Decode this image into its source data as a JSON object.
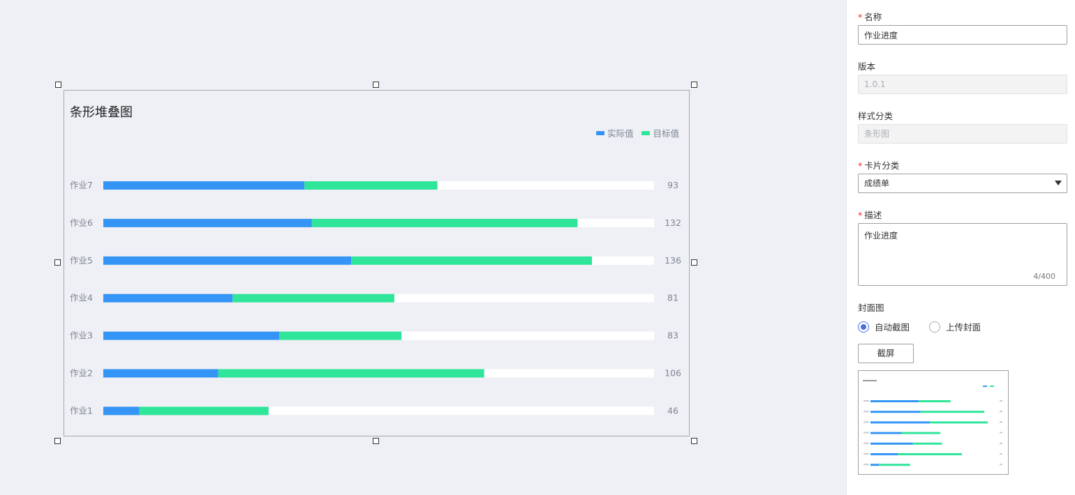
{
  "chart_data": {
    "type": "bar",
    "orientation": "horizontal",
    "stacked": true,
    "title": "条形堆叠图",
    "categories": [
      "作业7",
      "作业6",
      "作业5",
      "作业4",
      "作业3",
      "作业2",
      "作业1"
    ],
    "series": [
      {
        "name": "实际值",
        "color": "#3595f6",
        "values": [
          56,
          58,
          69,
          36,
          49,
          32,
          10
        ]
      },
      {
        "name": "目标值",
        "color": "#2fe59a",
        "values": [
          37,
          74,
          67,
          45,
          34,
          74,
          36
        ]
      }
    ],
    "totals": [
      93,
      132,
      136,
      81,
      83,
      106,
      46
    ],
    "xlim": [
      0,
      150
    ],
    "legend_position": "top-right",
    "grid": false
  },
  "panel": {
    "name": {
      "label": "名称",
      "required": true,
      "value": "作业进度"
    },
    "version": {
      "label": "版本",
      "value": "1.0.1"
    },
    "style_category": {
      "label": "样式分类",
      "value": "条形图"
    },
    "card_category": {
      "label": "卡片分类",
      "required": true,
      "value": "成绩单"
    },
    "description": {
      "label": "描述",
      "required": true,
      "value": "作业进度",
      "counter": "4/400"
    },
    "cover": {
      "label": "封面图",
      "options": [
        {
          "label": "自动截图",
          "checked": true
        },
        {
          "label": "上传封面",
          "checked": false
        }
      ],
      "screenshot_button": "截屏"
    }
  },
  "colors": {
    "accent": "#4a6ee0",
    "required": "#f5222d"
  }
}
